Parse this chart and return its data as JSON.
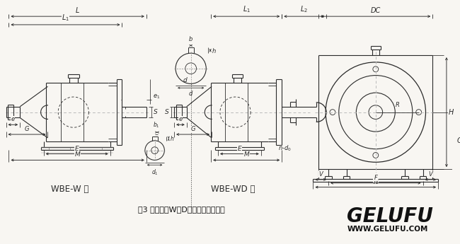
{
  "title": "图3 双级卧式W（D）型减速器的外形",
  "label_wbe_w": "WBE-W 型",
  "label_wbe_wd": "WBE-WD 型",
  "logo_text": "GELUFU",
  "logo_url": "WWW.GELUFU.COM",
  "bg_color": "#f8f6f2",
  "line_color": "#2a2a2a",
  "dim_color": "#2a2a2a",
  "center_line_color": "#bbbbbb",
  "fig_width": 6.5,
  "fig_height": 3.45,
  "dpi": 100
}
